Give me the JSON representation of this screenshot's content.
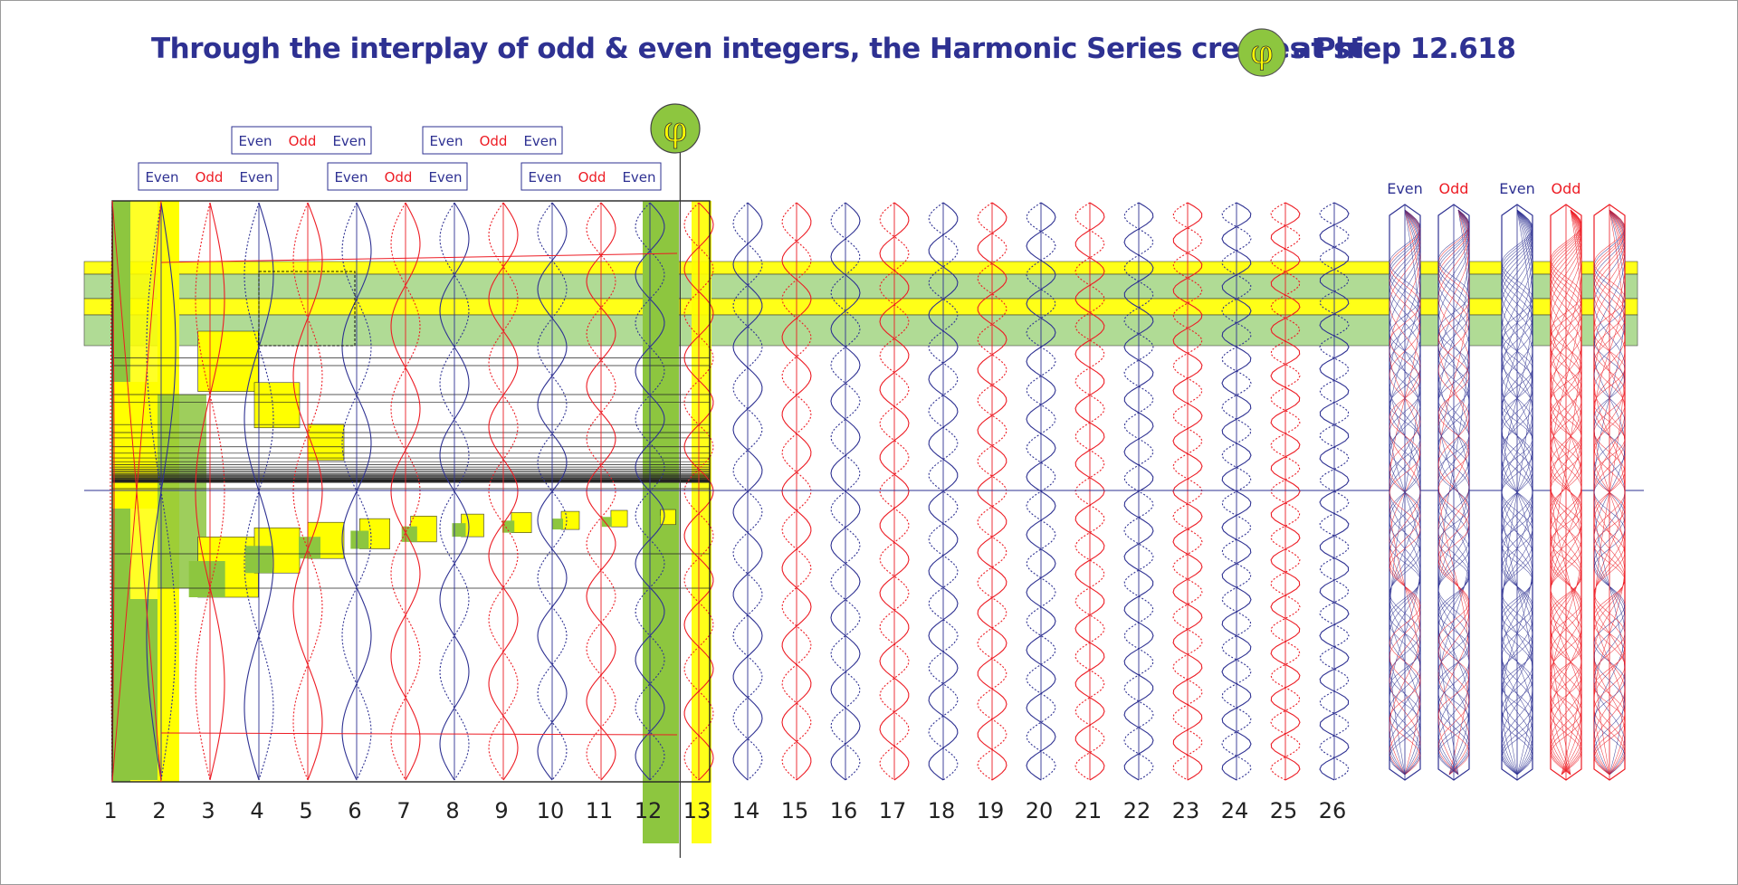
{
  "title": {
    "before_symbol": "Through the interplay of odd & even integers, the Harmonic Series creates Phi",
    "symbol": "φ",
    "after_symbol": "at step 12.618"
  },
  "phi_marker": {
    "symbol": "φ",
    "step": 12.618
  },
  "parity_boxes": [
    {
      "row": "lower",
      "labels": [
        "Even",
        "Odd",
        "Even"
      ]
    },
    {
      "row": "upper",
      "labels": [
        "Even",
        "Odd",
        "Even"
      ]
    },
    {
      "row": "lower",
      "labels": [
        "Even",
        "Odd",
        "Even"
      ]
    },
    {
      "row": "upper",
      "labels": [
        "Even",
        "Odd",
        "Even"
      ]
    },
    {
      "row": "lower",
      "labels": [
        "Even",
        "Odd",
        "Even"
      ]
    }
  ],
  "steps": [
    "1",
    "2",
    "3",
    "4",
    "5",
    "6",
    "7",
    "8",
    "9",
    "10",
    "11",
    "12",
    "13",
    "14",
    "15",
    "16",
    "17",
    "18",
    "19",
    "20",
    "21",
    "22",
    "23",
    "24",
    "25",
    "26"
  ],
  "bundle_labels": [
    "Even",
    "Odd",
    "Even",
    "Odd"
  ],
  "colors": {
    "even": "#2e3192",
    "odd": "#ed1c24",
    "yellow": "#ffff00",
    "green": "#8dc63f",
    "light_green": "#a8d88a",
    "title": "#2e3192"
  }
}
